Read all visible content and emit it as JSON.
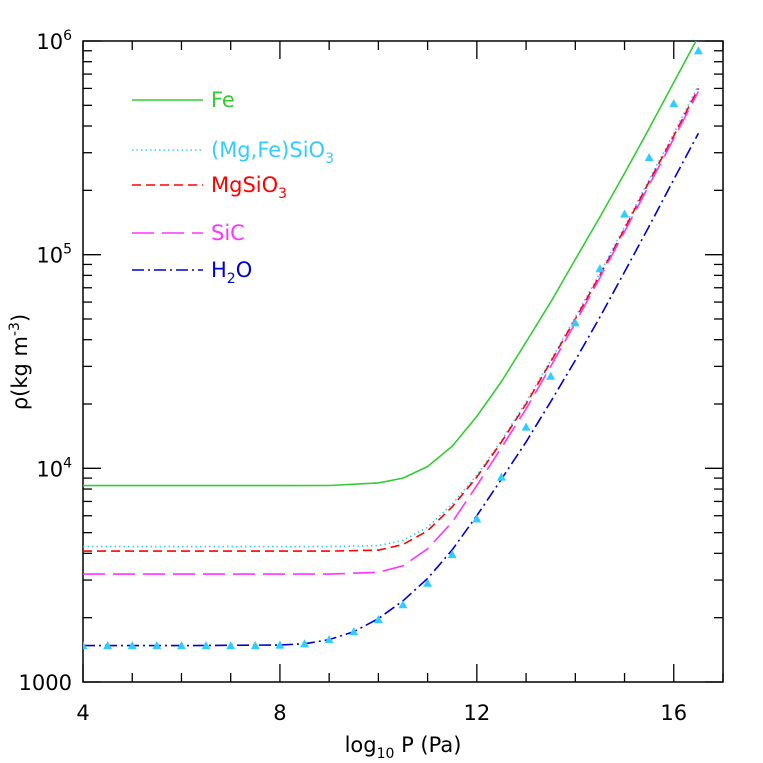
{
  "chart_data": {
    "type": "line",
    "title": "",
    "xlabel": {
      "base": "log",
      "sub": "10",
      "rest": " P (Pa)"
    },
    "ylabel": {
      "pre": "ρ(kg m",
      "sup": "-3",
      "post": ")"
    },
    "xlim": [
      4,
      17
    ],
    "ylim": [
      1000,
      1000000
    ],
    "yscale": "log",
    "x_ticks": [
      4,
      8,
      12,
      16
    ],
    "y_tick_labels": [
      {
        "value": 1000,
        "text": "1000"
      },
      {
        "value": 10000,
        "base": "10",
        "exp": "4"
      },
      {
        "value": 100000,
        "base": "10",
        "exp": "5"
      },
      {
        "value": 1000000,
        "base": "10",
        "exp": "6"
      }
    ],
    "grid": false,
    "legend_position": "top-left",
    "series": [
      {
        "name": "Fe",
        "color": "#33cc33",
        "dash": "solid",
        "x": [
          4,
          6,
          8,
          9,
          10,
          10.5,
          11,
          11.5,
          12,
          12.5,
          13,
          13.5,
          14,
          14.5,
          15,
          15.5,
          16,
          16.5
        ],
        "y": [
          8300,
          8300,
          8300,
          8310,
          8550,
          9000,
          10200,
          12700,
          17500,
          25500,
          39000,
          60000,
          95000,
          150000,
          240000,
          390000,
          640000,
          1050000
        ]
      },
      {
        "name_parts": {
          "main": "(Mg,Fe)SiO",
          "sub": "3"
        },
        "color": "#33ccff",
        "dash": "dotted",
        "x": [
          4,
          6,
          8,
          9,
          10,
          10.5,
          11,
          11.5,
          12,
          12.5,
          13,
          13.5,
          14,
          14.5,
          15,
          15.5,
          16,
          16.5
        ],
        "y": [
          4300,
          4300,
          4300,
          4300,
          4350,
          4600,
          5300,
          6800,
          9300,
          13500,
          20500,
          32000,
          51000,
          82000,
          135000,
          225000,
          370000,
          620000
        ]
      },
      {
        "name_parts": {
          "main": "MgSiO",
          "sub": "3"
        },
        "color": "#ff0000",
        "dash": "short-dash",
        "x": [
          4,
          6,
          8,
          9,
          10,
          10.5,
          11,
          11.5,
          12,
          12.5,
          13,
          13.5,
          14,
          14.5,
          15,
          15.5,
          16,
          16.5
        ],
        "y": [
          4100,
          4100,
          4100,
          4100,
          4140,
          4400,
          5100,
          6600,
          9100,
          13300,
          20000,
          31500,
          50000,
          80000,
          132000,
          220000,
          360000,
          600000
        ]
      },
      {
        "name": "SiC",
        "color": "#ff33ff",
        "dash": "long-dash",
        "x": [
          4,
          6,
          8,
          9,
          10,
          10.5,
          11,
          11.5,
          12,
          12.5,
          13,
          13.5,
          14,
          14.5,
          15,
          15.5,
          16,
          16.5
        ],
        "y": [
          3200,
          3200,
          3200,
          3200,
          3260,
          3500,
          4200,
          5600,
          8300,
          12500,
          19000,
          30000,
          48000,
          78000,
          128000,
          212000,
          350000,
          580000
        ]
      },
      {
        "name_parts": {
          "main": "H",
          "sub": "2",
          "after": "O"
        },
        "color": "#0000cc",
        "dash": "dash-dot",
        "x": [
          4,
          6,
          8,
          8.5,
          9,
          9.5,
          10,
          10.5,
          11,
          11.5,
          12,
          12.5,
          13,
          13.5,
          14,
          14.5,
          15,
          15.5,
          16,
          16.5
        ],
        "y": [
          1480,
          1480,
          1490,
          1510,
          1580,
          1720,
          1980,
          2400,
          3050,
          4150,
          6000,
          8900,
          13300,
          20500,
          32000,
          51000,
          83000,
          136000,
          225000,
          370000
        ]
      }
    ],
    "markers": {
      "name": "H2O data points",
      "color": "#33ccff",
      "shape": "triangle",
      "x": [
        4,
        4.5,
        5,
        5.5,
        6,
        6.5,
        7,
        7.5,
        8,
        8.5,
        9,
        9.5,
        10,
        10.5,
        11,
        11.5,
        12,
        12.5,
        13,
        13.5,
        14,
        14.5,
        15,
        15.5,
        16,
        16.5
      ],
      "y": [
        1480,
        1480,
        1480,
        1480,
        1480,
        1480,
        1480,
        1480,
        1490,
        1510,
        1580,
        1720,
        1960,
        2300,
        2900,
        3950,
        5800,
        9100,
        15600,
        27000,
        48000,
        86000,
        155000,
        285000,
        510000,
        900000
      ]
    }
  }
}
